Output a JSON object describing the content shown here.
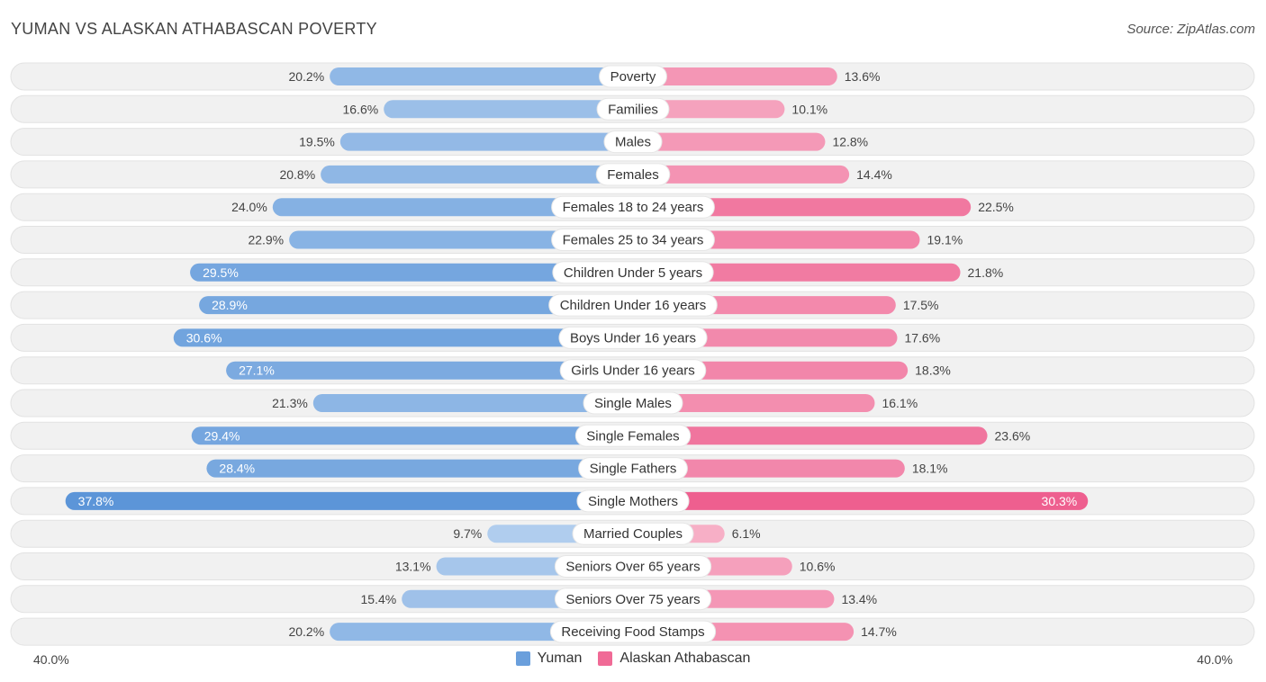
{
  "title": "YUMAN VS ALASKAN ATHABASCAN POVERTY",
  "source": "Source: ZipAtlas.com",
  "axis": {
    "left_label": "40.0%",
    "right_label": "40.0%"
  },
  "legend": [
    {
      "name": "Yuman",
      "color": "#6a9fdc"
    },
    {
      "name": "Alaskan Athabascan",
      "color": "#f06a96"
    }
  ],
  "chart_data": {
    "type": "bar",
    "orientation": "diverging-horizontal",
    "title": "YUMAN VS ALASKAN ATHABASCAN POVERTY",
    "unit": "%",
    "xlim": [
      -40,
      40
    ],
    "categories": [
      "Poverty",
      "Families",
      "Males",
      "Females",
      "Females 18 to 24 years",
      "Females 25 to 34 years",
      "Children Under 5 years",
      "Children Under 16 years",
      "Boys Under 16 years",
      "Girls Under 16 years",
      "Single Males",
      "Single Females",
      "Single Fathers",
      "Single Mothers",
      "Married Couples",
      "Seniors Over 65 years",
      "Seniors Over 75 years",
      "Receiving Food Stamps"
    ],
    "series": [
      {
        "name": "Yuman",
        "side": "left",
        "color": "#6a9fdc",
        "values": [
          20.2,
          16.6,
          19.5,
          20.8,
          24.0,
          22.9,
          29.5,
          28.9,
          30.6,
          27.1,
          21.3,
          29.4,
          28.4,
          37.8,
          9.7,
          13.1,
          15.4,
          20.2
        ],
        "labels": [
          "20.2%",
          "16.6%",
          "19.5%",
          "20.8%",
          "24.0%",
          "22.9%",
          "29.5%",
          "28.9%",
          "30.6%",
          "27.1%",
          "21.3%",
          "29.4%",
          "28.4%",
          "37.8%",
          "9.7%",
          "13.1%",
          "15.4%",
          "20.2%"
        ]
      },
      {
        "name": "Alaskan Athabascan",
        "side": "right",
        "color": "#f06a96",
        "values": [
          13.6,
          10.1,
          12.8,
          14.4,
          22.5,
          19.1,
          21.8,
          17.5,
          17.6,
          18.3,
          16.1,
          23.6,
          18.1,
          30.3,
          6.1,
          10.6,
          13.4,
          14.7
        ],
        "labels": [
          "13.6%",
          "10.1%",
          "12.8%",
          "14.4%",
          "22.5%",
          "19.1%",
          "21.8%",
          "17.5%",
          "17.6%",
          "18.3%",
          "16.1%",
          "23.6%",
          "18.1%",
          "30.3%",
          "6.1%",
          "10.6%",
          "13.4%",
          "14.7%"
        ]
      }
    ]
  }
}
